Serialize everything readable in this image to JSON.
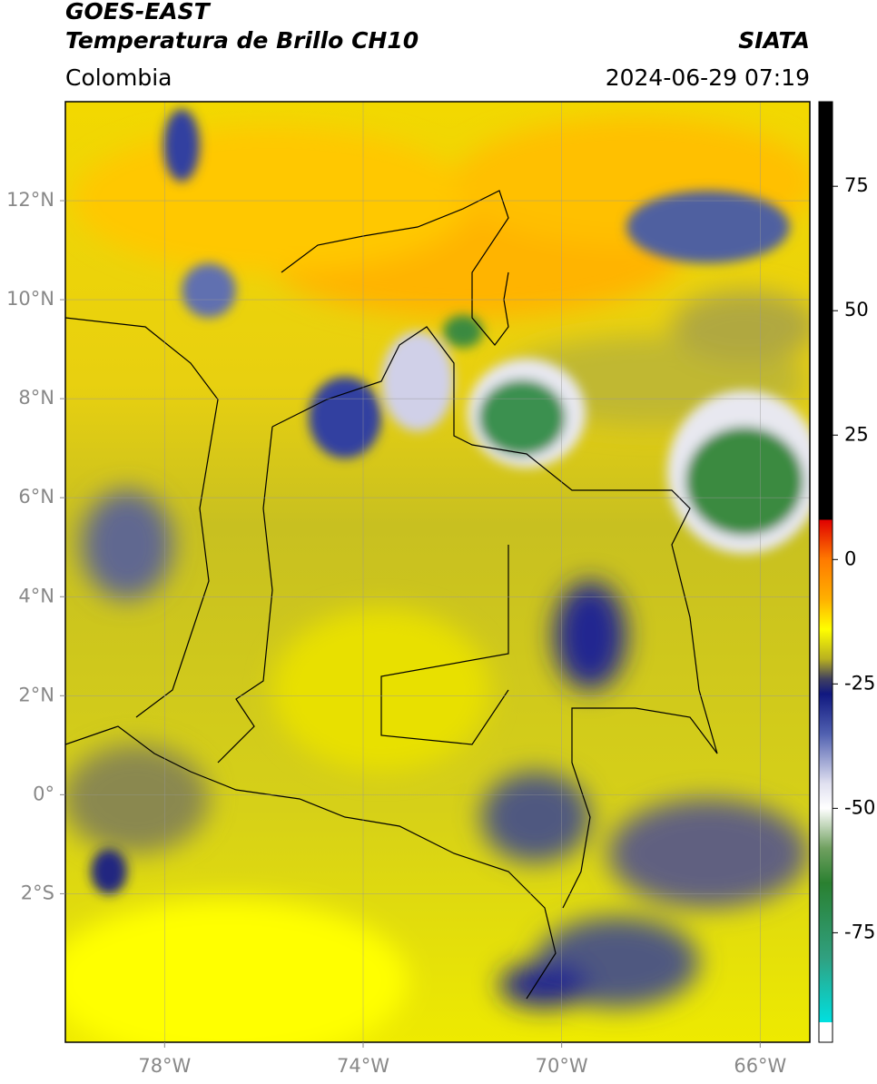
{
  "header": {
    "title": "GOES-EAST",
    "subtitle": "Temperatura de Brillo CH10",
    "source": "SIATA",
    "region": "Colombia",
    "datetime": "2024-06-29 07:19"
  },
  "map": {
    "xlim": [
      -80,
      -65
    ],
    "ylim": [
      -5,
      14
    ],
    "xticks": [
      {
        "value": -78,
        "label": "78°W"
      },
      {
        "value": -74,
        "label": "74°W"
      },
      {
        "value": -70,
        "label": "70°W"
      },
      {
        "value": -66,
        "label": "66°W"
      }
    ],
    "yticks": [
      {
        "value": 12,
        "label": "12°N"
      },
      {
        "value": 10,
        "label": "10°N"
      },
      {
        "value": 8,
        "label": "8°N"
      },
      {
        "value": 6,
        "label": "6°N"
      },
      {
        "value": 4,
        "label": "4°N"
      },
      {
        "value": 2,
        "label": "2°N"
      },
      {
        "value": 0,
        "label": "0°"
      },
      {
        "value": -2,
        "label": "2°S"
      }
    ],
    "grid": true
  },
  "colorbar": {
    "lim": [
      -97,
      92
    ],
    "ticks": [
      75,
      50,
      25,
      0,
      -25,
      -50,
      -75
    ],
    "stops": [
      {
        "value": 92,
        "color": "#000000"
      },
      {
        "value": 8,
        "color": "#000000"
      },
      {
        "value": 8,
        "color": "#e00000"
      },
      {
        "value": 0,
        "color": "#ff7a00"
      },
      {
        "value": -8,
        "color": "#ffb000"
      },
      {
        "value": -14,
        "color": "#ffff00"
      },
      {
        "value": -20,
        "color": "#b8b020"
      },
      {
        "value": -24,
        "color": "#404060"
      },
      {
        "value": -27,
        "color": "#101880"
      },
      {
        "value": -35,
        "color": "#5060b0"
      },
      {
        "value": -45,
        "color": "#e0e0f0"
      },
      {
        "value": -50,
        "color": "#ffffff"
      },
      {
        "value": -58,
        "color": "#70a060"
      },
      {
        "value": -65,
        "color": "#2a8030"
      },
      {
        "value": -80,
        "color": "#30a080"
      },
      {
        "value": -93,
        "color": "#00e0e0"
      },
      {
        "value": -93,
        "color": "#ffffff"
      },
      {
        "value": -97,
        "color": "#ffffff"
      }
    ]
  }
}
